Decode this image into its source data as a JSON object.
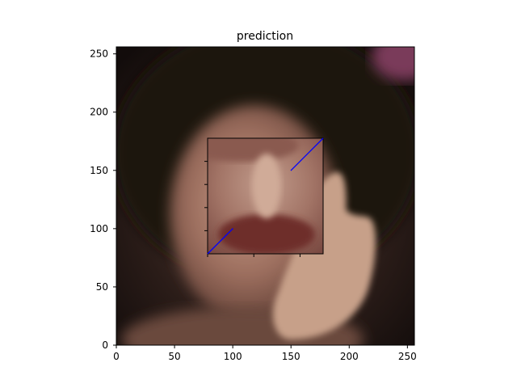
{
  "chart_data": {
    "type": "image",
    "title": "prediction",
    "xlabel": "",
    "ylabel": "",
    "xlim": [
      0,
      256
    ],
    "ylim": [
      0,
      256
    ],
    "x_ticks": [
      0,
      50,
      100,
      150,
      200,
      250
    ],
    "y_ticks": [
      0,
      50,
      100,
      150,
      200,
      250
    ],
    "image_subject": "blurred face of a woman with dark hair, hand raised beside the face",
    "inset": {
      "x_range": [
        78,
        178
      ],
      "y_range": [
        78,
        178
      ],
      "lines": [
        {
          "color": "#0000ff",
          "x": [
            78,
            100
          ],
          "y": [
            78,
            100
          ]
        },
        {
          "color": "#0000ff",
          "x": [
            150,
            178
          ],
          "y": [
            150,
            178
          ]
        }
      ],
      "x_ticks": [
        78,
        118,
        158
      ],
      "y_ticks": [
        98,
        118,
        138,
        158
      ]
    }
  }
}
